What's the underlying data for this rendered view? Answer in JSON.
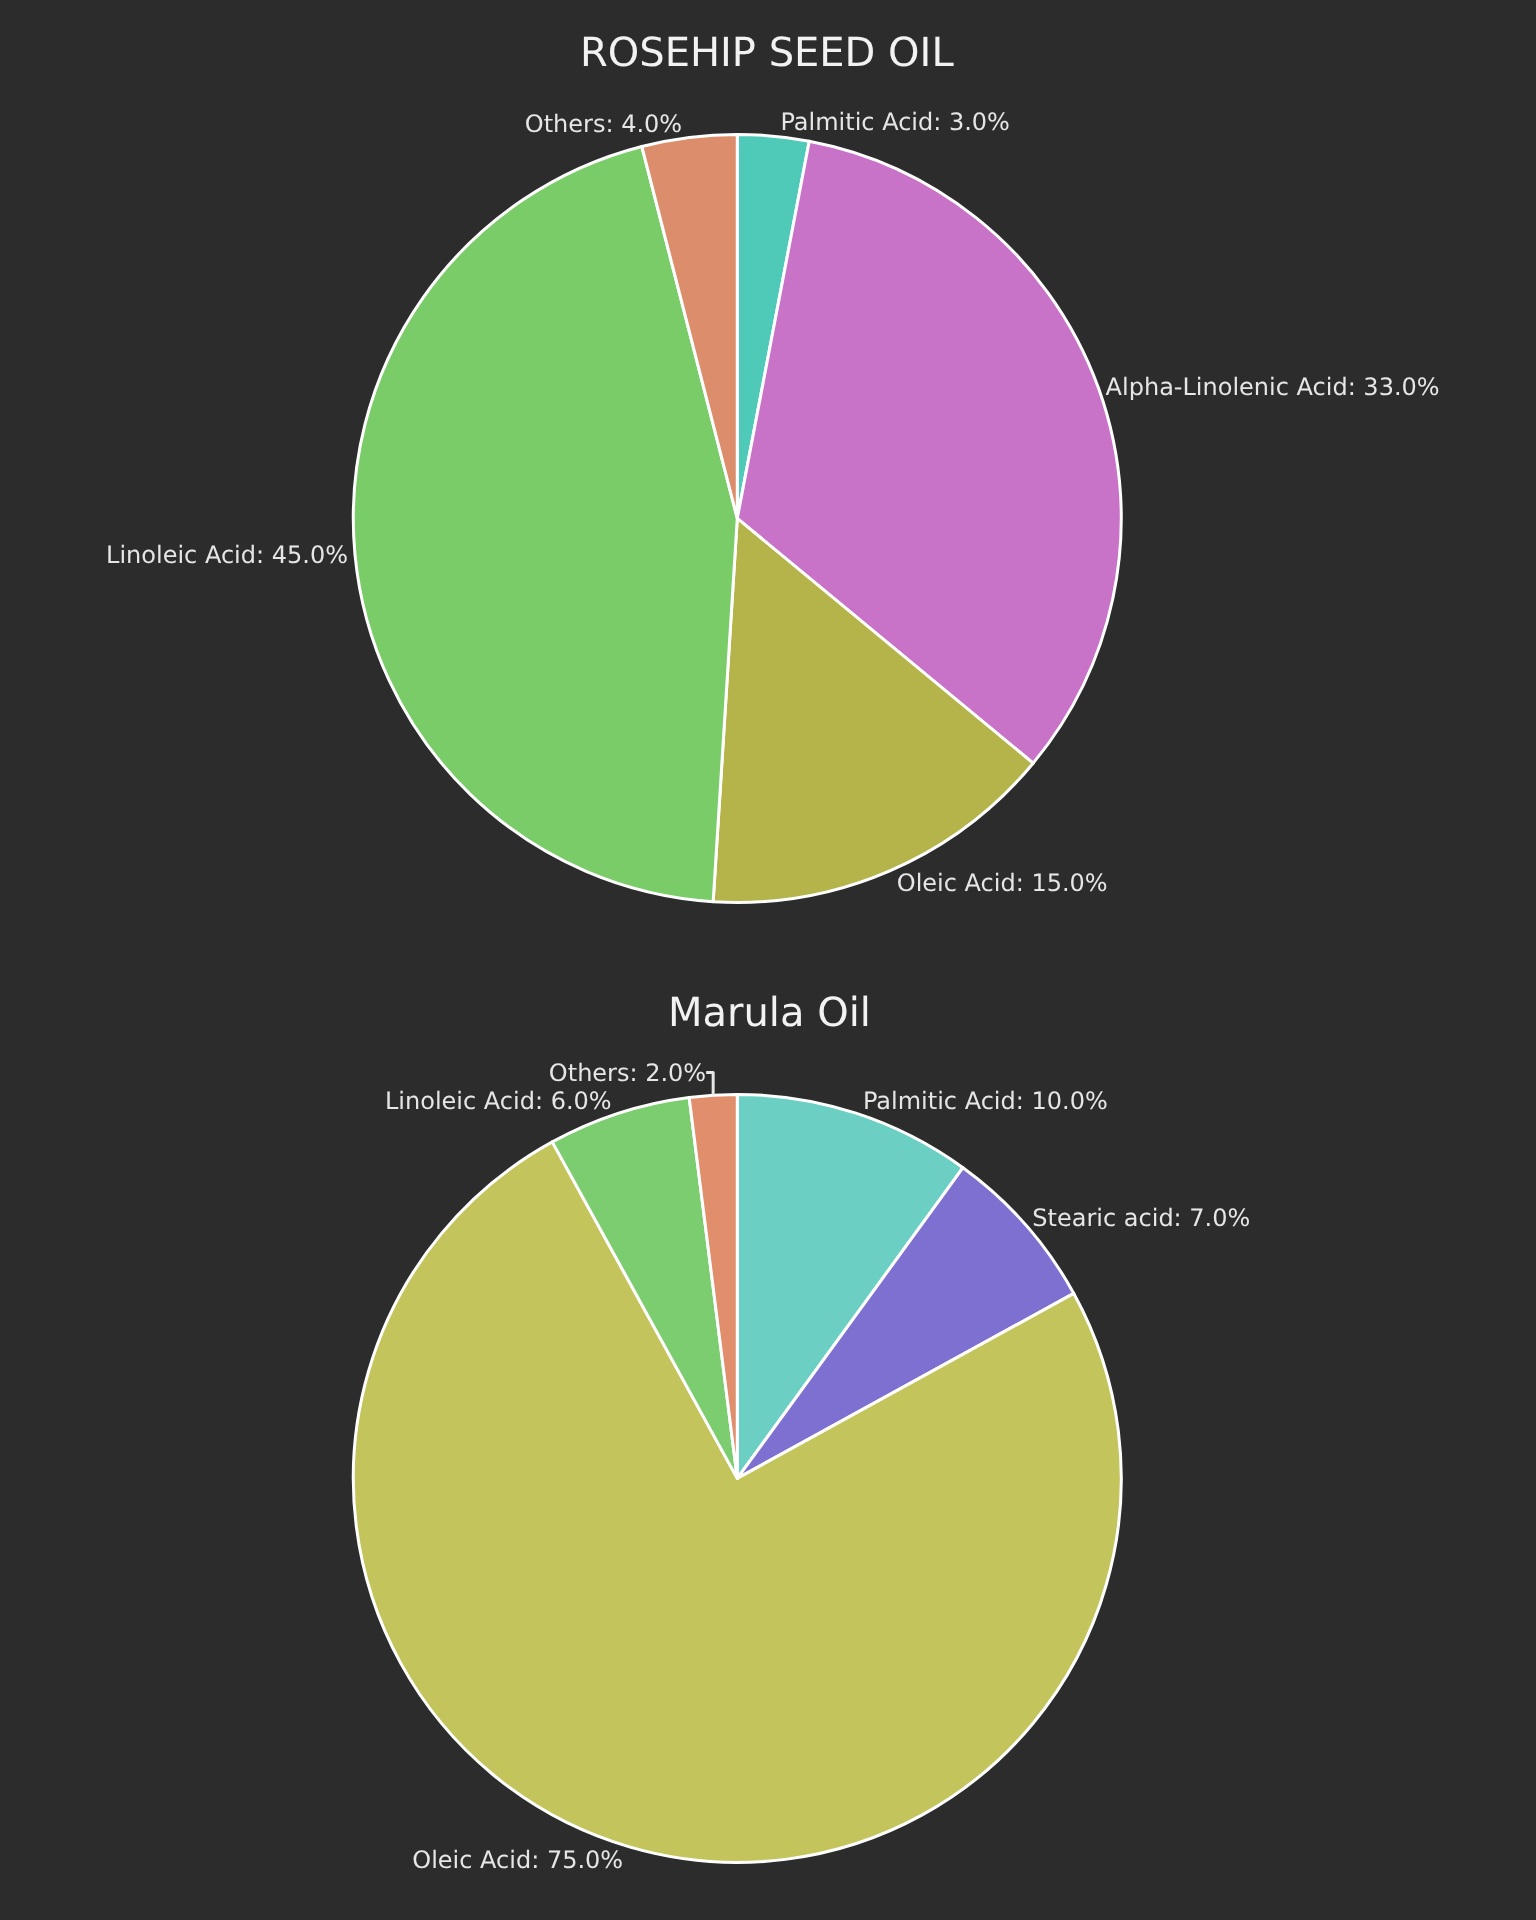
{
  "chart_data": [
    {
      "type": "pie",
      "title": "ROSEHIP SEED OIL",
      "categories": [
        "Palmitic Acid",
        "Alpha-Linolenic Acid",
        "Oleic Acid",
        "Linoleic Acid",
        "Others"
      ],
      "values": [
        3.0,
        33.0,
        15.0,
        45.0,
        4.0
      ],
      "value_labels": [
        "3.0%",
        "33.0%",
        "15.0%",
        "45.0%",
        "4.0%"
      ],
      "colors": [
        "#4fc9b8",
        "#c872c8",
        "#b4b44a",
        "#7acc68",
        "#dc8e6c"
      ],
      "legend": false
    },
    {
      "type": "pie",
      "title": "Marula Oil",
      "categories": [
        "Palmitic Acid",
        "Stearic acid",
        "Oleic Acid",
        "Linoleic Acid",
        "Others"
      ],
      "values": [
        10.0,
        7.0,
        75.0,
        6.0,
        2.0
      ],
      "value_labels": [
        "10.0%",
        "7.0%",
        "75.0%",
        "6.0%",
        "2.0%"
      ],
      "colors": [
        "#6ccfc4",
        "#7e70d0",
        "#c4c45c",
        "#7ccc70",
        "#e08e6c"
      ],
      "legend": false
    }
  ]
}
